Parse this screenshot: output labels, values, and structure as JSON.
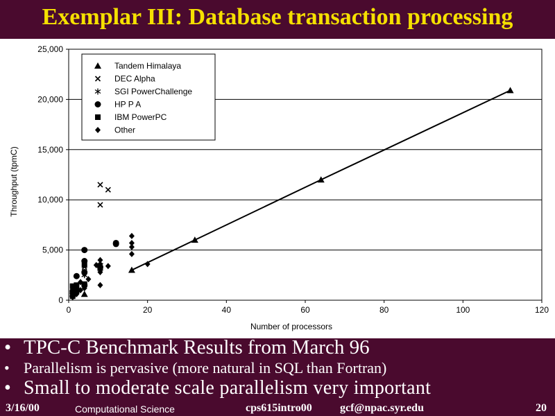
{
  "slide": {
    "title": "Exemplar III: Database transaction processing",
    "bullets": [
      "TPC-C Benchmark Results from March 96",
      "Parallelism is pervasive (more natural in SQL than Fortran)",
      "Small to moderate scale parallelism very important"
    ],
    "footer": {
      "date": "3/16/00",
      "course": "Computational Science",
      "file": "cps615intro00",
      "email": "gcf@npac.syr.edu",
      "page": "20"
    },
    "bullet_glyph": "•"
  },
  "chart_data": {
    "type": "scatter",
    "title": "",
    "xlabel": "Number of processors",
    "ylabel": "Throughput (tpmC)",
    "xlim": [
      0,
      120
    ],
    "ylim": [
      0,
      25000
    ],
    "xticks": [
      {
        "value": 0,
        "label": "0"
      },
      {
        "value": 20,
        "label": "20"
      },
      {
        "value": 40,
        "label": "40"
      },
      {
        "value": 60,
        "label": "60"
      },
      {
        "value": 80,
        "label": "80"
      },
      {
        "value": 100,
        "label": "100"
      },
      {
        "value": 120,
        "label": "120"
      }
    ],
    "yticks": [
      {
        "value": 0,
        "label": "0"
      },
      {
        "value": 5000,
        "label": "5,000"
      },
      {
        "value": 10000,
        "label": "10,000"
      },
      {
        "value": 15000,
        "label": "15,000"
      },
      {
        "value": 20000,
        "label": "20,000"
      },
      {
        "value": 25000,
        "label": "25,000"
      }
    ],
    "grid": "horizontal",
    "legend_position": "top-left",
    "series": [
      {
        "name": "Tandem Himalaya",
        "marker": "triangle",
        "line": true,
        "points": [
          [
            4,
            600
          ],
          [
            16,
            3000
          ],
          [
            32,
            6000
          ],
          [
            64,
            12000
          ],
          [
            112,
            20900
          ]
        ]
      },
      {
        "name": "DEC Alpha",
        "marker": "x",
        "points": [
          [
            1,
            700
          ],
          [
            2,
            1300
          ],
          [
            4,
            3300
          ],
          [
            8,
            9500
          ],
          [
            8,
            11500
          ],
          [
            10,
            11000
          ]
        ]
      },
      {
        "name": "SGI PowerChallenge",
        "marker": "asterisk",
        "points": [
          [
            1,
            600
          ],
          [
            2,
            1000
          ],
          [
            4,
            1500
          ],
          [
            4,
            2500
          ],
          [
            8,
            3500
          ]
        ]
      },
      {
        "name": "HP P A",
        "marker": "circle",
        "points": [
          [
            1,
            400
          ],
          [
            1,
            700
          ],
          [
            1,
            900
          ],
          [
            2,
            1100
          ],
          [
            2,
            2400
          ],
          [
            4,
            1500
          ],
          [
            4,
            2800
          ],
          [
            4,
            3900
          ],
          [
            4,
            5000
          ],
          [
            8,
            3300
          ],
          [
            12,
            5600
          ],
          [
            12,
            5700
          ]
        ]
      },
      {
        "name": "IBM PowerPC",
        "marker": "square",
        "points": [
          [
            1,
            400
          ],
          [
            1,
            800
          ],
          [
            1,
            1400
          ],
          [
            2,
            900
          ],
          [
            2,
            1500
          ],
          [
            4,
            1600
          ],
          [
            4,
            3500
          ],
          [
            8,
            3200
          ]
        ]
      },
      {
        "name": "Other",
        "marker": "diamond",
        "points": [
          [
            1,
            300
          ],
          [
            2,
            600
          ],
          [
            3,
            1000
          ],
          [
            3,
            1800
          ],
          [
            4,
            1200
          ],
          [
            4,
            2600
          ],
          [
            5,
            2100
          ],
          [
            7,
            3500
          ],
          [
            8,
            1500
          ],
          [
            8,
            2800
          ],
          [
            8,
            3600
          ],
          [
            8,
            4000
          ],
          [
            10,
            3400
          ],
          [
            16,
            4600
          ],
          [
            16,
            5300
          ],
          [
            16,
            5700
          ],
          [
            16,
            6400
          ],
          [
            20,
            3600
          ]
        ]
      }
    ],
    "colors": {
      "marks": "#000000",
      "grid": "#000000",
      "panel": "#ffffff",
      "slide_bg": "#4a0a2e",
      "title": "#f5e000",
      "text": "#ffffff"
    }
  }
}
